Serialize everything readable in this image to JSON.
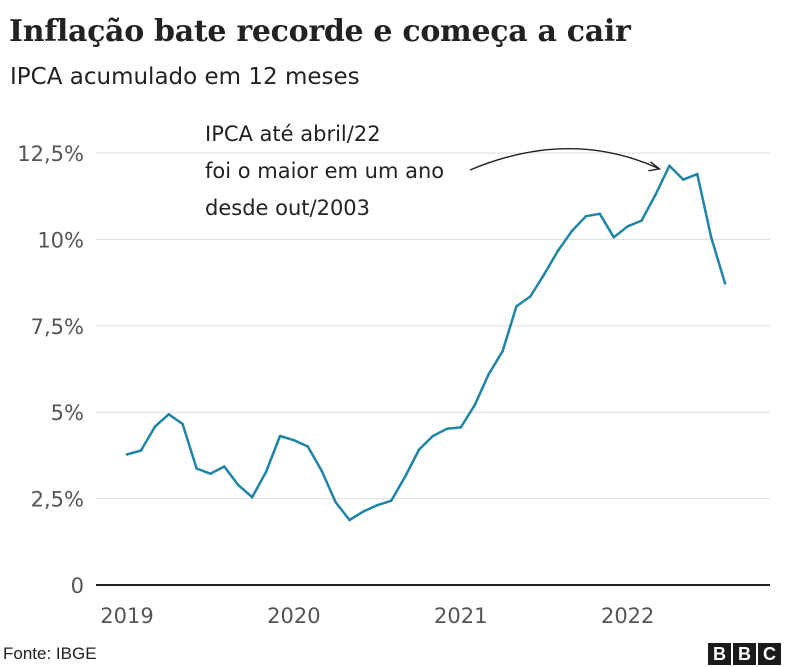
{
  "header": {
    "title": "Inflação bate recorde e começa a cair",
    "subtitle": "IPCA acumulado em 12 meses"
  },
  "footer": {
    "source": "Fonte: IBGE",
    "logo_letters": [
      "B",
      "B",
      "C"
    ]
  },
  "colors": {
    "line": "#1f85a6",
    "grid": "#dddddd",
    "baseline": "#222222",
    "text": "#222222",
    "tick_text": "#555555"
  },
  "chart_data": {
    "type": "line",
    "title": "Inflação bate recorde e começa a cair",
    "subtitle": "IPCA acumulado em 12 meses",
    "ylim": [
      0,
      12.5
    ],
    "y_ticks": [
      0,
      2.5,
      5,
      7.5,
      10,
      12.5
    ],
    "y_tick_labels": [
      "0",
      "2,5%",
      "5%",
      "7,5%",
      "10%",
      "12,5%"
    ],
    "x_ticks": [
      2019,
      2020,
      2021,
      2022
    ],
    "x_tick_labels": [
      "2019",
      "2020",
      "2021",
      "2022"
    ],
    "x_range": [
      2019,
      2022.667
    ],
    "grid": true,
    "annotation": {
      "lines": [
        "IPCA até abril/22",
        "foi o maior em um ano",
        "desde out/2003"
      ],
      "target": {
        "x": 2022.25,
        "y": 12.13
      }
    },
    "series": [
      {
        "name": "",
        "color": "#1f85a6",
        "x": [
          2019.0,
          2019.083,
          2019.167,
          2019.25,
          2019.333,
          2019.417,
          2019.5,
          2019.583,
          2019.667,
          2019.75,
          2019.833,
          2019.917,
          2020.0,
          2020.083,
          2020.167,
          2020.25,
          2020.333,
          2020.417,
          2020.5,
          2020.583,
          2020.667,
          2020.75,
          2020.833,
          2020.917,
          2021.0,
          2021.083,
          2021.167,
          2021.25,
          2021.333,
          2021.417,
          2021.5,
          2021.583,
          2021.667,
          2021.75,
          2021.833,
          2021.917,
          2022.0,
          2022.083,
          2022.167,
          2022.25,
          2022.333,
          2022.417,
          2022.5,
          2022.583
        ],
        "values": [
          3.78,
          3.89,
          4.58,
          4.94,
          4.66,
          3.37,
          3.22,
          3.43,
          2.89,
          2.54,
          3.27,
          4.31,
          4.19,
          4.01,
          3.3,
          2.4,
          1.88,
          2.13,
          2.31,
          2.44,
          3.14,
          3.92,
          4.31,
          4.52,
          4.56,
          5.2,
          6.1,
          6.76,
          8.06,
          8.35,
          8.99,
          9.68,
          10.25,
          10.67,
          10.74,
          10.06,
          10.38,
          10.54,
          11.3,
          12.13,
          11.73,
          11.89,
          10.07,
          8.73
        ]
      }
    ]
  }
}
